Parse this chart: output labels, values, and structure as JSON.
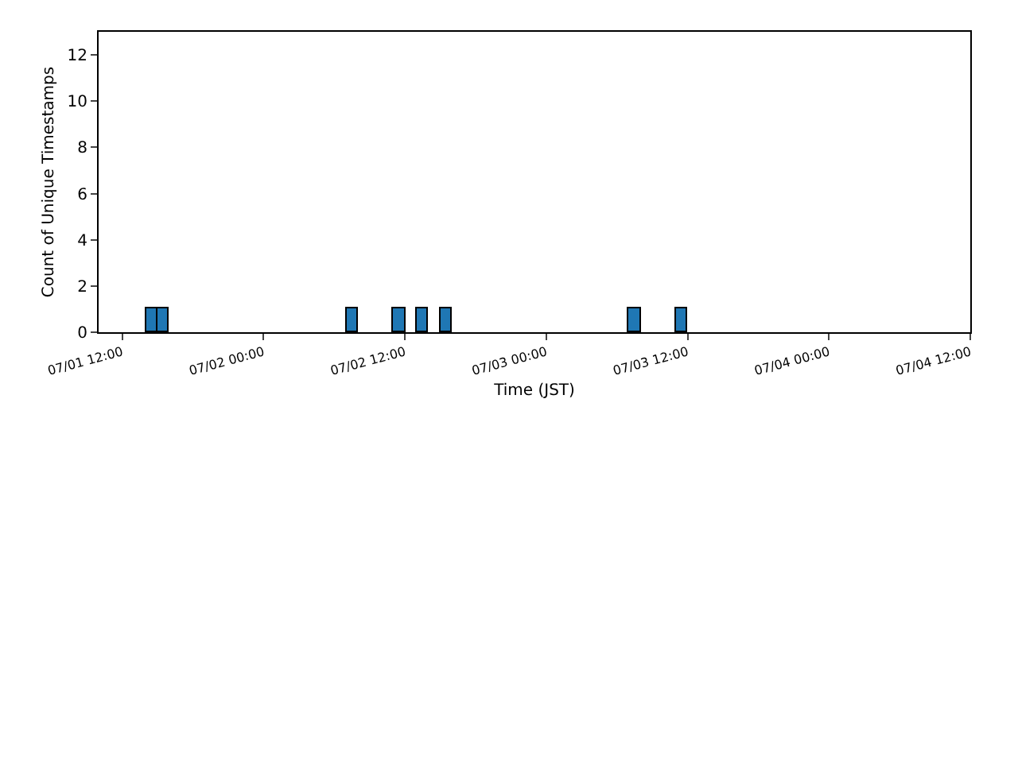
{
  "chart_data": {
    "type": "histogram",
    "xlabel": "Time (JST)",
    "ylabel": "Count of Unique Timestamps",
    "bins": [
      "--07-01T11:00",
      "--07-01T12:00",
      "--07-01T13:00",
      "--07-01T14:00",
      "--07-01T15:00",
      "--07-01T16:00",
      "--07-01T17:00",
      "--07-01T18:00",
      "--07-01T19:00",
      "--07-01T20:00",
      "--07-01T21:00",
      "--07-01T22:00",
      "--07-01T23:00",
      "--07-02T00:00",
      "--07-02T01:00",
      "--07-02T02:00",
      "--07-02T03:00",
      "--07-02T04:00",
      "--07-02T05:00",
      "--07-02T06:00",
      "--07-02T07:00",
      "--07-02T08:00",
      "--07-02T09:00",
      "--07-02T10:00",
      "--07-02T11:00",
      "--07-02T12:00",
      "--07-02T13:00",
      "--07-02T14:00",
      "--07-02T15:00",
      "--07-02T16:00",
      "--07-02T17:00",
      "--07-02T18:00",
      "--07-02T19:00",
      "--07-02T20:00",
      "--07-02T21:00",
      "--07-02T22:00",
      "--07-02T23:00",
      "--07-03T00:00",
      "--07-03T01:00",
      "--07-03T02:00",
      "--07-03T03:00",
      "--07-03T04:00",
      "--07-03T05:00",
      "--07-03T06:00",
      "--07-03T07:00",
      "--07-03T08:00",
      "--07-03T09:00",
      "--07-03T10:00",
      "--07-03T11:00",
      "--07-03T12:00",
      "--07-03T13:00",
      "--07-03T14:00",
      "--07-03T15:00",
      "--07-03T16:00",
      "--07-03T17:00",
      "--07-03T18:00",
      "--07-03T19:00",
      "--07-03T20:00",
      "--07-03T21:00",
      "--07-03T22:00",
      "--07-03T23:00",
      "--07-04T00:00",
      "--07-04T01:00",
      "--07-04T02:00",
      "--07-04T03:00",
      "--07-04T04:00",
      "--07-04T05:00",
      "--07-04T06:00",
      "--07-04T07:00",
      "--07-04T08:00",
      "--07-04T09:00",
      "--07-04T10:00"
    ],
    "values": [
      0,
      0,
      0,
      1,
      1,
      0,
      0,
      0,
      0,
      0,
      0,
      0,
      0,
      0,
      0,
      0,
      0,
      0,
      0,
      0,
      1,
      0,
      0,
      0,
      1,
      0,
      1,
      0,
      1,
      0,
      0,
      0,
      0,
      0,
      0,
      0,
      0,
      0,
      0,
      0,
      0,
      0,
      0,
      0,
      1,
      0,
      0,
      0,
      1,
      0,
      0,
      0,
      0,
      0,
      0,
      0,
      0,
      0,
      0,
      0,
      0,
      0,
      0,
      0,
      0,
      0,
      0,
      0,
      0,
      0,
      0
    ],
    "color": "#1f77b4",
    "xlim": [
      "--07-01T10:00",
      "--07-04T12:00"
    ],
    "xticks": [
      {
        "value": "--07-01T12:00",
        "label": "07/01 12:00"
      },
      {
        "value": "--07-02T00:00",
        "label": "07/02 00:00"
      },
      {
        "value": "--07-02T12:00",
        "label": "07/02 12:00"
      },
      {
        "value": "--07-03T00:00",
        "label": "07/03 00:00"
      },
      {
        "value": "--07-03T12:00",
        "label": "07/03 12:00"
      },
      {
        "value": "--07-04T00:00",
        "label": "07/04 00:00"
      },
      {
        "value": "--07-04T12:00",
        "label": "07/04 12:00"
      }
    ],
    "ylim": [
      0,
      13
    ],
    "yticks": [
      0,
      2,
      4,
      6,
      8,
      10,
      12
    ],
    "grid": false,
    "legend": false
  }
}
